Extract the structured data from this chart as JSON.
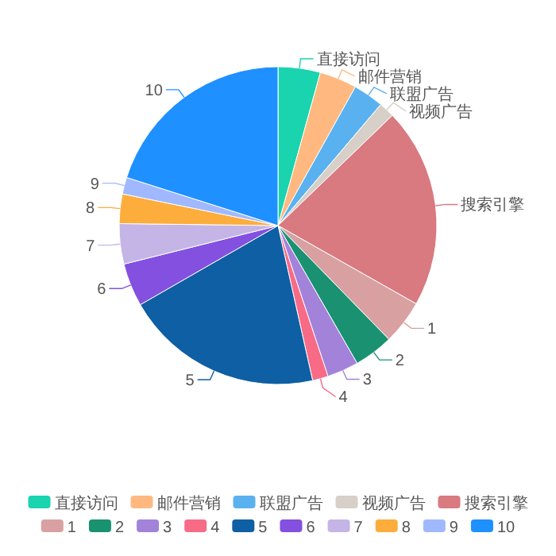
{
  "chart_data": {
    "type": "pie",
    "categories": [
      "直接访问",
      "邮件营销",
      "联盟广告",
      "视频广告",
      "搜索引擎",
      "1",
      "2",
      "3",
      "4",
      "5",
      "6",
      "7",
      "8",
      "9",
      "10"
    ],
    "values": [
      4.3,
      3.8,
      3.1,
      1.6,
      20.4,
      4.5,
      4.0,
      3.2,
      1.6,
      20.2,
      4.4,
      4.1,
      3.0,
      1.7,
      20.1
    ],
    "colors": [
      "#19d4ae",
      "#ffb980",
      "#5ab1ef",
      "#d7d0c8",
      "#d87a80",
      "#d9a0a2",
      "#1a9271",
      "#a383d9",
      "#f76b87",
      "#0e5fa3",
      "#8350e0",
      "#c5b5e6",
      "#fcad3b",
      "#a0b8ff",
      "#1e90ff"
    ],
    "legend": "bottom"
  }
}
